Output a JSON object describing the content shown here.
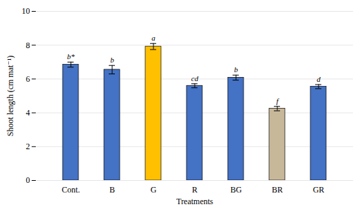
{
  "chart_data": {
    "type": "bar",
    "categories": [
      "Cont.",
      "B",
      "G",
      "R",
      "BG",
      "BR",
      "GR"
    ],
    "values": [
      6.85,
      6.55,
      7.92,
      5.6,
      6.08,
      4.25,
      5.55
    ],
    "errors": [
      0.15,
      0.25,
      0.18,
      0.12,
      0.15,
      0.13,
      0.12
    ],
    "colors": [
      "#4472C4",
      "#4472C4",
      "#FFC000",
      "#4472C4",
      "#4472C4",
      "#C8B89A",
      "#4472C4"
    ],
    "annotations": [
      "b*",
      "b",
      "a",
      "cd",
      "b",
      "f",
      "d"
    ],
    "xlabel": "Treatments",
    "ylabel": "Shoot length (cm mat⁻¹)",
    "ylim": [
      0,
      10
    ],
    "yticks": [
      0,
      2,
      4,
      6,
      8,
      10
    ],
    "grid": true
  }
}
